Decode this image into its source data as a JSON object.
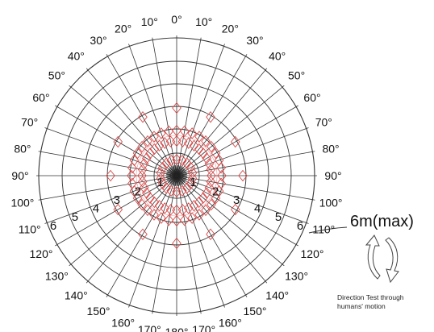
{
  "angle_labels": {
    "right": [
      "0°",
      "10°",
      "20°",
      "30°",
      "40°",
      "50°",
      "60°",
      "70°",
      "80°",
      "90°",
      "100°",
      "110°",
      "120°",
      "130°",
      "140°",
      "150°",
      "160°",
      "170°",
      "180°"
    ],
    "left": [
      "10°",
      "20°",
      "30°",
      "40°",
      "50°",
      "60°",
      "70°",
      "80°",
      "90°",
      "100°",
      "110°",
      "120°",
      "130°",
      "140°",
      "150°",
      "160°",
      "170°"
    ]
  },
  "ring_labels": [
    "1",
    "2",
    "3",
    "4",
    "5",
    "6"
  ],
  "max_range_label": "6m(max)",
  "caption": {
    "line1": "Direction Test through",
    "line2": "humans' motion"
  },
  "colors": {
    "grid": "#333333",
    "pattern": "#d94848",
    "center": "#222222"
  },
  "arrow_icon": "curved-arrows-icon"
}
